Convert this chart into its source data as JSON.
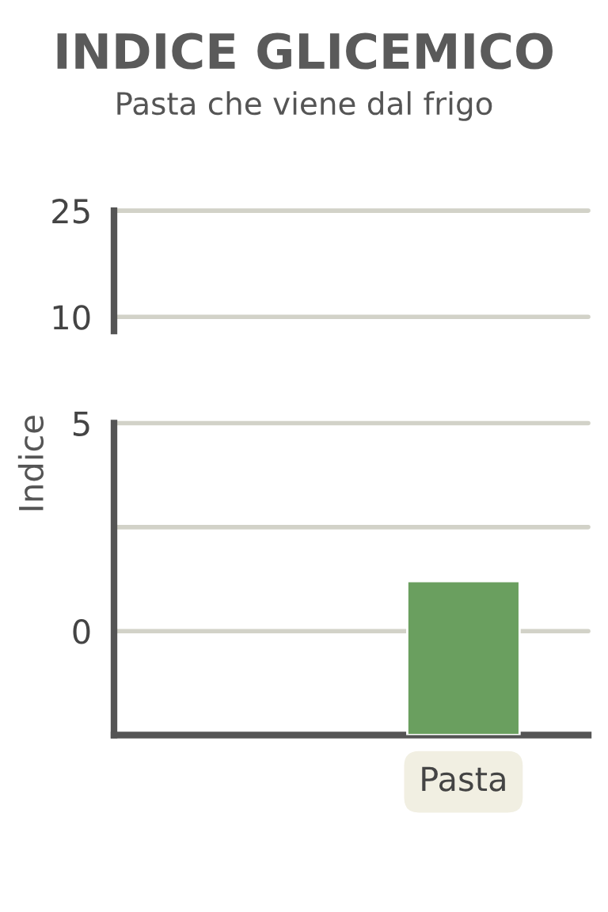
{
  "chart_data": [
    {
      "type": "bar",
      "title": "INDICE GLICEMICO",
      "subtitle": "Pasta che viene dal frigo",
      "categories": [
        null
      ],
      "values": [
        null
      ],
      "ylim": [
        8,
        25
      ],
      "yticks": [
        10,
        25
      ],
      "grid": "y",
      "tick_labels": "y"
    },
    {
      "type": "bar",
      "ylabel": "Indice",
      "categories": [
        "Pasta"
      ],
      "values": [
        3.7
      ],
      "base": [
        -2.5
      ],
      "colors": [
        "#6a9f5f"
      ],
      "ylim": [
        -2.5,
        5
      ],
      "yticks": [
        0,
        {
          "value": 2.5,
          "label": null
        },
        5
      ],
      "grid": "y"
    }
  ]
}
